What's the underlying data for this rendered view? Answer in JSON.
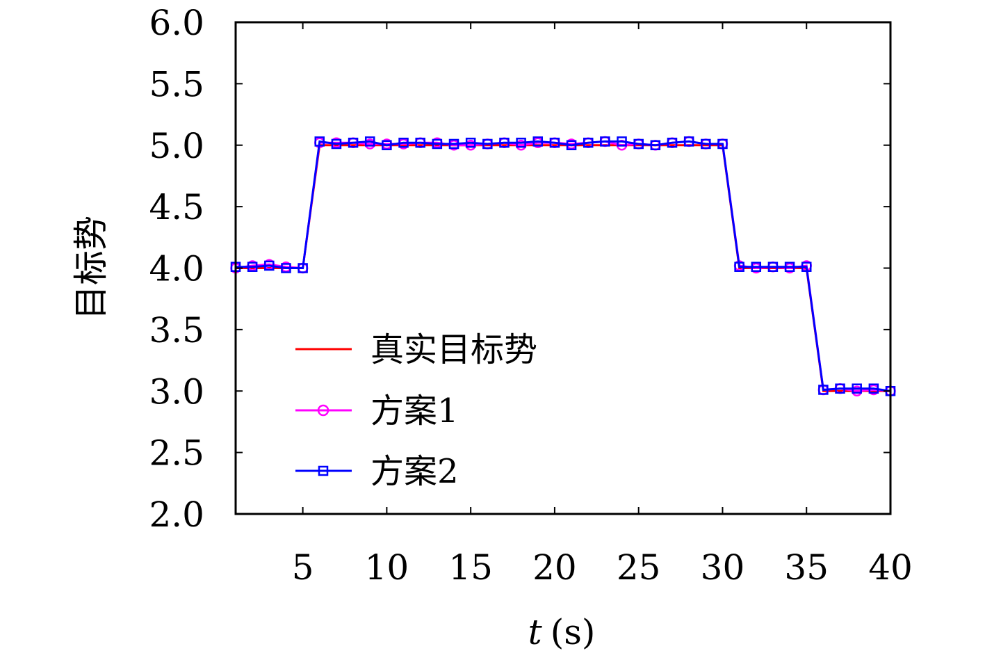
{
  "chart_data": {
    "type": "line",
    "xlabel_var": "t",
    "xlabel_unit": "(s)",
    "ylabel": "目标势",
    "xlim": [
      1,
      40
    ],
    "ylim": [
      2.0,
      6.0
    ],
    "xticks": [
      5,
      10,
      15,
      20,
      25,
      30,
      35,
      40
    ],
    "xtick_labels": [
      "5",
      "10",
      "15",
      "20",
      "25",
      "30",
      "35",
      "40"
    ],
    "yticks": [
      2.0,
      2.5,
      3.0,
      3.5,
      4.0,
      4.5,
      5.0,
      5.5,
      6.0
    ],
    "ytick_labels": [
      "2.0",
      "2.5",
      "3.0",
      "3.5",
      "4.0",
      "4.5",
      "5.0",
      "5.5",
      "6.0"
    ],
    "grid": false,
    "legend_position": "lower-left",
    "x": [
      1,
      2,
      3,
      4,
      5,
      6,
      7,
      8,
      9,
      10,
      11,
      12,
      13,
      14,
      15,
      16,
      17,
      18,
      19,
      20,
      21,
      22,
      23,
      24,
      25,
      26,
      27,
      28,
      29,
      30,
      31,
      32,
      33,
      34,
      35,
      36,
      37,
      38,
      39,
      40
    ],
    "series": [
      {
        "name": "真实目标势",
        "color": "#ff0000",
        "marker": "none",
        "values": [
          4,
          4,
          4,
          4,
          4,
          5,
          5,
          5,
          5,
          5,
          5,
          5,
          5,
          5,
          5,
          5,
          5,
          5,
          5,
          5,
          5,
          5,
          5,
          5,
          5,
          5,
          5,
          5,
          5,
          5,
          4,
          4,
          4,
          4,
          4,
          3,
          3,
          3,
          3,
          3
        ]
      },
      {
        "name": "方案1",
        "color": "#ff00ff",
        "marker": "circle",
        "values": [
          4.0,
          4.02,
          4.03,
          4.01,
          4.0,
          5.02,
          5.02,
          5.02,
          5.01,
          5.01,
          5.01,
          5.02,
          5.02,
          5.0,
          5.0,
          5.01,
          5.02,
          5.0,
          5.02,
          5.02,
          5.01,
          5.02,
          5.03,
          5.0,
          5.01,
          5.0,
          5.02,
          5.03,
          5.01,
          5.01,
          4.02,
          4.0,
          4.01,
          4.0,
          4.02,
          3.01,
          3.02,
          3.0,
          3.01,
          3.0
        ]
      },
      {
        "name": "方案2",
        "color": "#0000ff",
        "marker": "square",
        "values": [
          4.01,
          4.01,
          4.02,
          4.0,
          4.0,
          5.03,
          5.01,
          5.02,
          5.03,
          5.0,
          5.02,
          5.02,
          5.01,
          5.01,
          5.02,
          5.01,
          5.02,
          5.02,
          5.03,
          5.02,
          5.0,
          5.02,
          5.03,
          5.03,
          5.01,
          5.0,
          5.02,
          5.03,
          5.01,
          5.01,
          4.01,
          4.01,
          4.01,
          4.01,
          4.01,
          3.01,
          3.02,
          3.02,
          3.02,
          3.0
        ]
      }
    ]
  }
}
